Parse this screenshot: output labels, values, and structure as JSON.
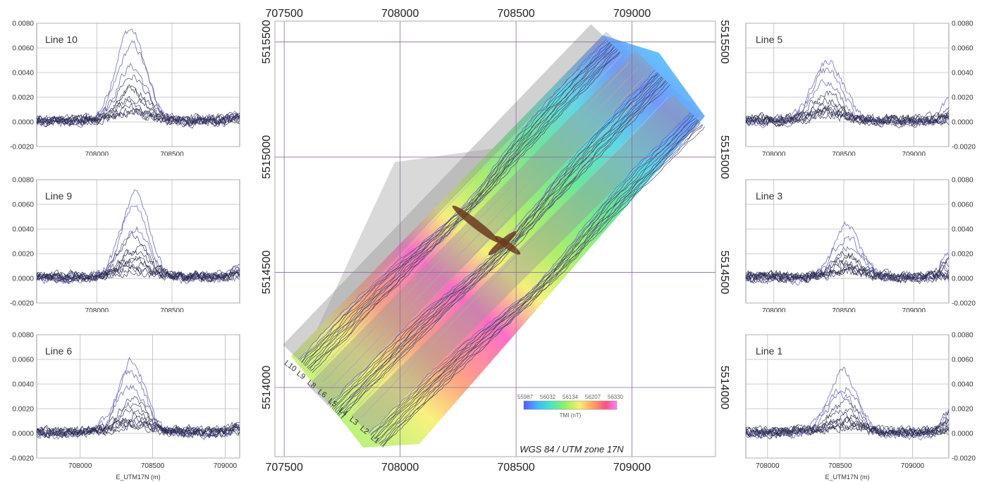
{
  "chart_data": [
    {
      "type": "line",
      "title": "Line 10",
      "xlabel": "",
      "ylim": [
        -0.002,
        0.008
      ],
      "yticks": [
        "0.0080",
        "0.0060",
        "0.0040",
        "0.0020",
        "0.0000",
        "-0.0020"
      ],
      "xticks": [
        "708000",
        "708500"
      ],
      "xvals": [
        708000,
        708500
      ],
      "xlim": [
        707600,
        708950
      ],
      "peak_x": 708230,
      "peak_y": 0.0075
    },
    {
      "type": "line",
      "title": "Line 9",
      "xlabel": "",
      "ylim": [
        -0.002,
        0.008
      ],
      "yticks": [
        "0.0080",
        "0.0060",
        "0.0040",
        "0.0020",
        "0.0000",
        "-0.0020"
      ],
      "xticks": [
        "708000",
        "708500"
      ],
      "xvals": [
        708000,
        708500
      ],
      "xlim": [
        707600,
        708950
      ],
      "peak_x": 708250,
      "peak_y": 0.0068
    },
    {
      "type": "line",
      "title": "Line 6",
      "xlabel": "E_UTM17N (m)",
      "ylim": [
        -0.002,
        0.008
      ],
      "yticks": [
        "0.0080",
        "0.0060",
        "0.0040",
        "0.0020",
        "0.0000",
        "-0.0020"
      ],
      "xticks": [
        "708000",
        "708500",
        "709000"
      ],
      "xvals": [
        708000,
        708500,
        709000
      ],
      "xlim": [
        707700,
        709100
      ],
      "peak_x": 708360,
      "peak_y": 0.0059
    },
    {
      "type": "line",
      "title": "Line 5",
      "xlabel": "",
      "ylim": [
        -0.002,
        0.008
      ],
      "yticks": [
        "0.0080",
        "0.0060",
        "0.0040",
        "0.0020",
        "0.0000",
        "-0.0020"
      ],
      "xticks": [
        "708000",
        "708500",
        "709000"
      ],
      "xvals": [
        708000,
        708500,
        709000
      ],
      "xlim": [
        707800,
        709250
      ],
      "peak_x": 708380,
      "peak_y": 0.005
    },
    {
      "type": "line",
      "title": "Line 3",
      "xlabel": "",
      "ylim": [
        -0.002,
        0.008
      ],
      "yticks": [
        "0.0080",
        "0.0060",
        "0.0040",
        "0.0020",
        "0.0000",
        "-0.0020"
      ],
      "xticks": [
        "708000",
        "708500",
        "709000"
      ],
      "xvals": [
        708000,
        708500,
        709000
      ],
      "xlim": [
        707800,
        709250
      ],
      "peak_x": 708520,
      "peak_y": 0.0042
    },
    {
      "type": "line",
      "title": "Line 1",
      "xlabel": "E_UTM17N (m)",
      "ylim": [
        -0.002,
        0.008
      ],
      "yticks": [
        "0.0080",
        "0.0060",
        "0.0040",
        "0.0020",
        "0.0000",
        "-0.0020"
      ],
      "xticks": [
        "708000",
        "708500",
        "709000"
      ],
      "xvals": [
        708000,
        708500,
        709000
      ],
      "xlim": [
        707850,
        709250
      ],
      "peak_x": 708520,
      "peak_y": 0.005
    }
  ],
  "map": {
    "xticks": [
      "707500",
      "708000",
      "708500",
      "709000"
    ],
    "xvals": [
      707500,
      708000,
      708500,
      709000
    ],
    "yticks": [
      "5515500",
      "5515000",
      "5514500",
      "5514000"
    ],
    "yvals": [
      5515500,
      5515000,
      5514500,
      5514000
    ],
    "xlim": [
      707460,
      709360
    ],
    "ylim": [
      5513700,
      5515590
    ],
    "caption": "WGS 84 / UTM zone 17N",
    "colorbar": {
      "ticks": [
        "55987",
        "56032",
        "56134",
        "56207",
        "56330"
      ],
      "label": "TMI (nT)"
    },
    "line_labels": [
      "L10",
      "L9",
      "L8",
      "L6",
      "L5",
      "L4",
      "L3",
      "L2",
      "L1"
    ]
  },
  "colors": {
    "trace": "#3a3a6a",
    "grid": "#888",
    "lavender": "#8888c8"
  }
}
